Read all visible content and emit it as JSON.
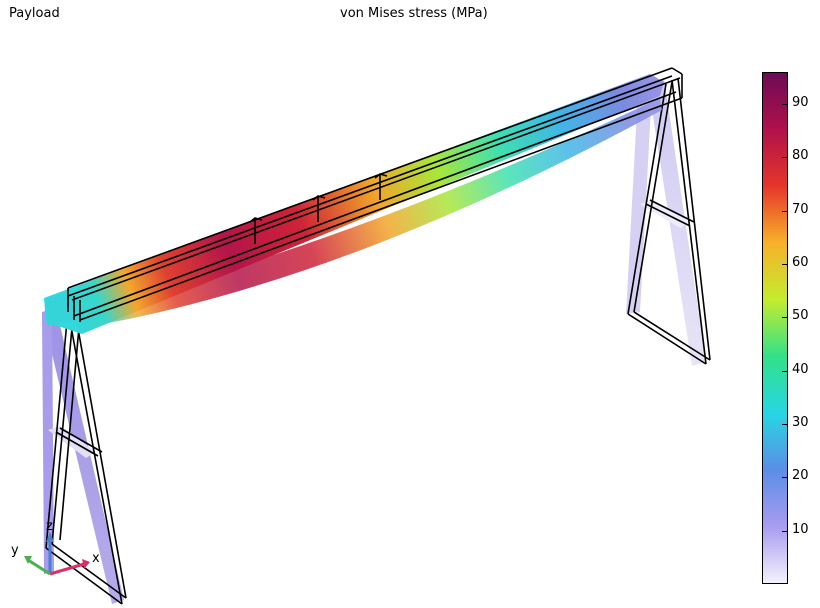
{
  "header": {
    "left_label": "Payload",
    "title": "von Mises stress (MPa)"
  },
  "axis_triad": {
    "x": "x",
    "y": "y",
    "z": "z"
  },
  "colorbar": {
    "min": 0,
    "max": 96,
    "ticks": [
      {
        "value": 90,
        "label": "90"
      },
      {
        "value": 80,
        "label": "80"
      },
      {
        "value": 70,
        "label": "70"
      },
      {
        "value": 60,
        "label": "60"
      },
      {
        "value": 50,
        "label": "50"
      },
      {
        "value": 40,
        "label": "40"
      },
      {
        "value": 30,
        "label": "30"
      },
      {
        "value": 20,
        "label": "20"
      },
      {
        "value": 10,
        "label": "10"
      }
    ],
    "colors": [
      "#f4f2fb",
      "#a89cf0",
      "#5b8ee6",
      "#28d6e3",
      "#32e08a",
      "#c4ec2f",
      "#f7b12a",
      "#e6362a",
      "#b0114a",
      "#6d0b55"
    ]
  }
}
